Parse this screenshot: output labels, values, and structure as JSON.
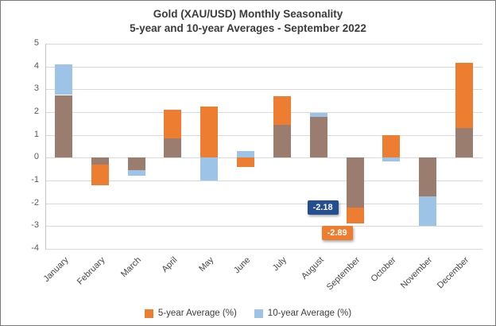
{
  "chart_data": {
    "type": "bar",
    "title": "Gold (XAU/USD) Monthly Seasonality",
    "subtitle": "5-year and 10-year Averages - September 2022",
    "categories": [
      "January",
      "February",
      "March",
      "April",
      "May",
      "June",
      "July",
      "August",
      "September",
      "October",
      "November",
      "December"
    ],
    "series": [
      {
        "name": "5-year Average (%)",
        "color": "#ED7D31",
        "values": [
          2.75,
          -1.2,
          -0.55,
          2.1,
          2.25,
          -0.4,
          2.7,
          1.8,
          -2.89,
          1.0,
          -1.7,
          4.15
        ]
      },
      {
        "name": "10-year Average (%)",
        "color": "#9DC3E6",
        "values": [
          4.1,
          -0.3,
          -0.8,
          0.85,
          -1.0,
          0.3,
          1.45,
          1.95,
          -2.18,
          -0.15,
          -3.0,
          1.3
        ]
      }
    ],
    "overlap_color": "#9B7D6F",
    "ylim": [
      -4,
      5
    ],
    "ytick_step": 1,
    "yticks": [
      "5",
      "4",
      "3",
      "2",
      "1",
      "0",
      "-1",
      "-2",
      "-3",
      "-4"
    ],
    "grid": true,
    "legend_position": "bottom",
    "annotations": [
      {
        "text": "-2.18",
        "color": "#254E8F",
        "category": "September",
        "value": -2.18,
        "series": "10-year Average (%)"
      },
      {
        "text": "-2.89",
        "color": "#ED7D31",
        "category": "September",
        "value": -2.89,
        "series": "5-year Average (%)"
      }
    ]
  }
}
